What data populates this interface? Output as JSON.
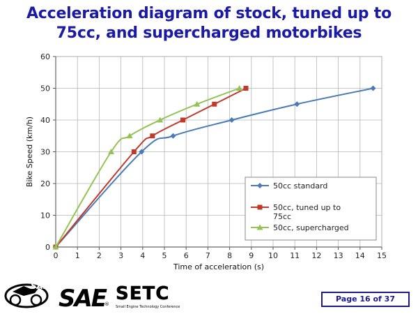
{
  "slide": {
    "title_line1": "Acceleration diagram of stock, tuned up to",
    "title_line2": "75cc, and supercharged motorbikes",
    "page_label": "Page 16 of 37"
  },
  "logos": {
    "sae_text": "SAE",
    "setc_text": "SETC",
    "setc_subtitle": "Small Engine Technology Conference",
    "sae_registered": "®"
  },
  "colors": {
    "title": "#1a1aa6",
    "standard": "#4a7ab8",
    "tuned": "#c0392b",
    "supercharged": "#93c352"
  },
  "chart_data": {
    "type": "line",
    "xlabel": "Time of acceleration (s)",
    "ylabel": "Bike Speed (km/h)",
    "xlim": [
      0,
      15
    ],
    "ylim": [
      0,
      60
    ],
    "xticks": [
      0,
      1,
      2,
      3,
      4,
      5,
      6,
      7,
      8,
      9,
      10,
      11,
      12,
      13,
      14,
      15
    ],
    "yticks": [
      0,
      10,
      20,
      30,
      40,
      50,
      60
    ],
    "grid": true,
    "legend_position": "right",
    "series": [
      {
        "name": "50cc standard",
        "marker": "diamond",
        "color": "#4a7ab8",
        "points": [
          [
            0,
            0
          ],
          [
            3.95,
            30
          ],
          [
            5.4,
            35
          ],
          [
            8.1,
            40
          ],
          [
            11.1,
            45
          ],
          [
            14.6,
            50
          ]
        ]
      },
      {
        "name": "50cc, tuned up to 75cc",
        "name_lines": [
          "50cc, tuned up to",
          "75cc"
        ],
        "marker": "square",
        "color": "#c0392b",
        "points": [
          [
            0,
            0
          ],
          [
            3.6,
            30
          ],
          [
            4.45,
            35
          ],
          [
            5.85,
            40
          ],
          [
            7.3,
            45
          ],
          [
            8.75,
            50
          ]
        ]
      },
      {
        "name": "50cc, supercharged",
        "marker": "triangle",
        "color": "#93c352",
        "points": [
          [
            0,
            0
          ],
          [
            2.55,
            30
          ],
          [
            3.4,
            35
          ],
          [
            4.8,
            40
          ],
          [
            6.5,
            45
          ],
          [
            8.45,
            50
          ]
        ]
      }
    ]
  }
}
